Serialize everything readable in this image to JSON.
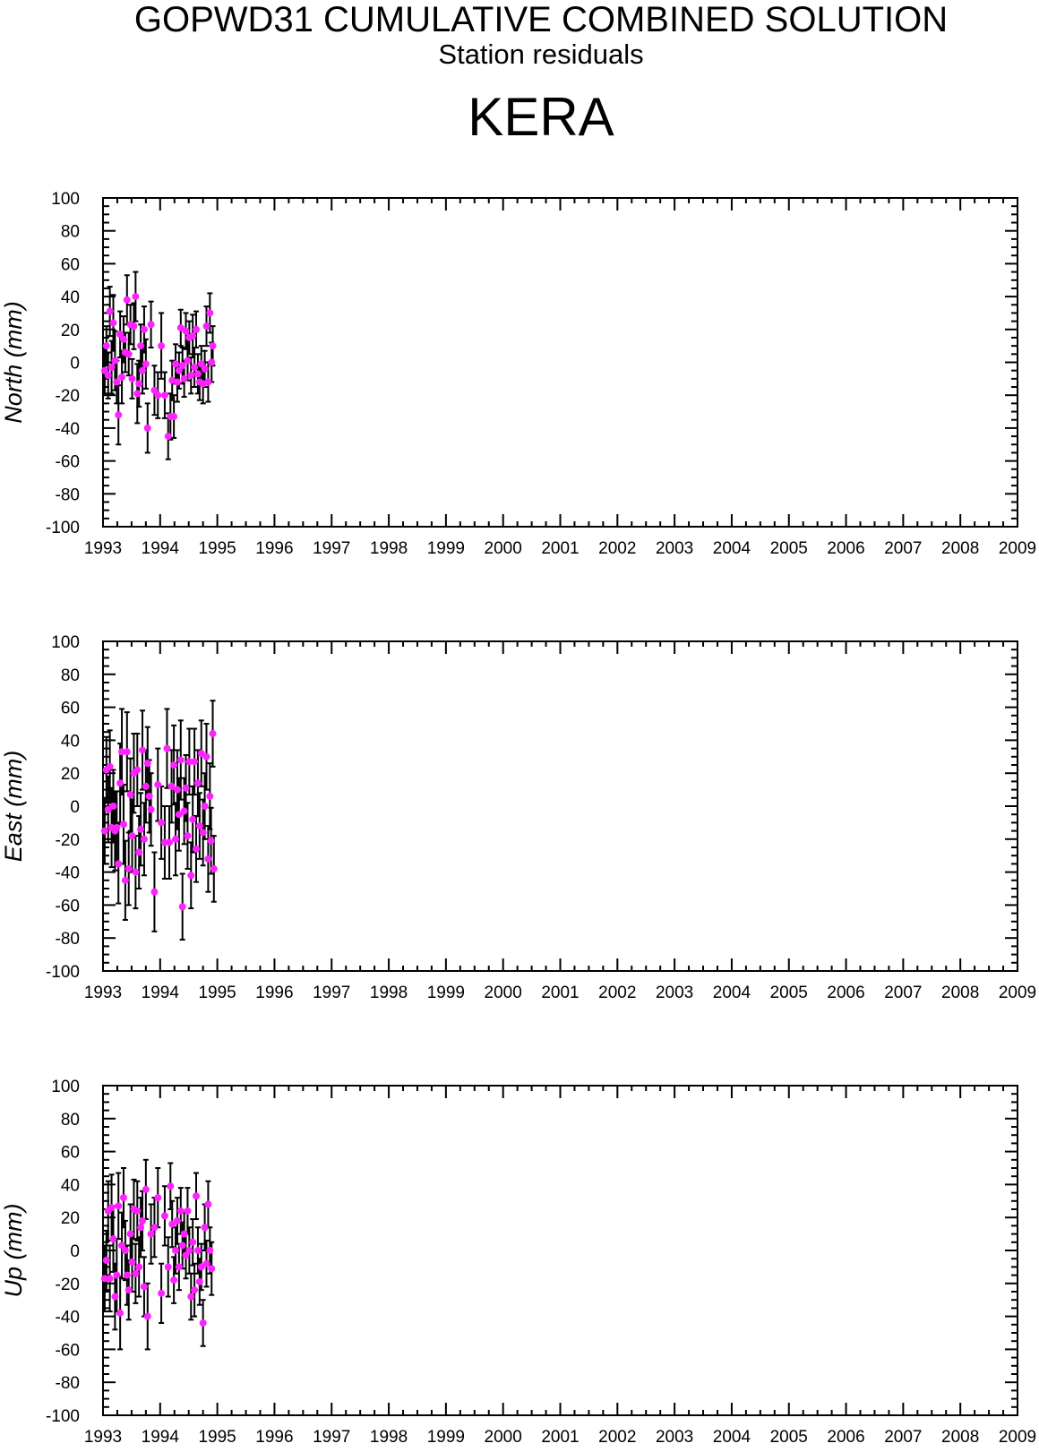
{
  "header": {
    "title": "GOPWD31 CUMULATIVE COMBINED SOLUTION",
    "subtitle": "Station residuals",
    "station": "KERA"
  },
  "style": {
    "marker_color": "#ff22ff",
    "error_bar_color": "#000000",
    "axis_color": "#000000"
  },
  "chart_data": [
    {
      "type": "scatter",
      "ylabel": "North (mm)",
      "xlim": [
        1993,
        2009
      ],
      "ylim": [
        -100,
        100
      ],
      "xticks": [
        "1993",
        "1994",
        "1995",
        "1996",
        "1997",
        "1998",
        "1999",
        "2000",
        "2001",
        "2002",
        "2003",
        "2004",
        "2005",
        "2006",
        "2007",
        "2008",
        "2009"
      ],
      "yticks": [
        "100",
        "80",
        "60",
        "40",
        "20",
        "0",
        "-20",
        "-40",
        "-60",
        "-80",
        "-100"
      ],
      "error_bars": true,
      "points": [
        [
          1993.03,
          -5,
          14
        ],
        [
          1993.06,
          10,
          12
        ],
        [
          1993.09,
          -8,
          14
        ],
        [
          1993.12,
          31,
          15
        ],
        [
          1993.15,
          -3,
          16
        ],
        [
          1993.18,
          24,
          17
        ],
        [
          1993.21,
          1,
          18
        ],
        [
          1993.24,
          -12,
          13
        ],
        [
          1993.27,
          -32,
          18
        ],
        [
          1993.3,
          17,
          14
        ],
        [
          1993.33,
          -9,
          16
        ],
        [
          1993.36,
          14,
          14
        ],
        [
          1993.39,
          6,
          12
        ],
        [
          1993.42,
          38,
          15
        ],
        [
          1993.45,
          5,
          13
        ],
        [
          1993.48,
          23,
          12
        ],
        [
          1993.51,
          -10,
          12
        ],
        [
          1993.54,
          22,
          14
        ],
        [
          1993.57,
          40,
          15
        ],
        [
          1993.6,
          -19,
          18
        ],
        [
          1993.63,
          -13,
          14
        ],
        [
          1993.66,
          10,
          13
        ],
        [
          1993.69,
          -5,
          14
        ],
        [
          1993.72,
          20,
          14
        ],
        [
          1993.75,
          -1,
          15
        ],
        [
          1993.78,
          -40,
          15
        ],
        [
          1993.84,
          23,
          14
        ],
        [
          1993.9,
          -17,
          15
        ],
        [
          1993.96,
          -20,
          14
        ],
        [
          1994.02,
          10,
          20
        ],
        [
          1994.08,
          -20,
          14
        ],
        [
          1994.14,
          -45,
          14
        ],
        [
          1994.18,
          -33,
          14
        ],
        [
          1994.21,
          -11,
          12
        ],
        [
          1994.24,
          -33,
          13
        ],
        [
          1994.27,
          -1,
          12
        ],
        [
          1994.3,
          -12,
          12
        ],
        [
          1994.33,
          -5,
          11
        ],
        [
          1994.36,
          21,
          11
        ],
        [
          1994.39,
          -2,
          11
        ],
        [
          1994.42,
          -10,
          11
        ],
        [
          1994.45,
          19,
          11
        ],
        [
          1994.48,
          1,
          12
        ],
        [
          1994.51,
          15,
          10
        ],
        [
          1994.54,
          -8,
          11
        ],
        [
          1994.57,
          16,
          13
        ],
        [
          1994.6,
          -3,
          12
        ],
        [
          1994.63,
          20,
          11
        ],
        [
          1994.66,
          -7,
          12
        ],
        [
          1994.69,
          -12,
          11
        ],
        [
          1994.72,
          -1,
          11
        ],
        [
          1994.75,
          -13,
          12
        ],
        [
          1994.78,
          -4,
          11
        ],
        [
          1994.81,
          22,
          12
        ],
        [
          1994.84,
          -12,
          12
        ],
        [
          1994.87,
          30,
          12
        ],
        [
          1994.9,
          0,
          12
        ],
        [
          1994.92,
          10,
          12
        ]
      ]
    },
    {
      "type": "scatter",
      "ylabel": "East (mm)",
      "xlim": [
        1993,
        2009
      ],
      "ylim": [
        -100,
        100
      ],
      "xticks": [
        "1993",
        "1994",
        "1995",
        "1996",
        "1997",
        "1998",
        "1999",
        "2000",
        "2001",
        "2002",
        "2003",
        "2004",
        "2005",
        "2006",
        "2007",
        "2008",
        "2009"
      ],
      "yticks": [
        "100",
        "80",
        "60",
        "40",
        "20",
        "0",
        "-20",
        "-40",
        "-60",
        "-80",
        "-100"
      ],
      "error_bars": true,
      "points": [
        [
          1993.03,
          -15,
          20
        ],
        [
          1993.06,
          22,
          20
        ],
        [
          1993.09,
          -2,
          20
        ],
        [
          1993.12,
          24,
          22
        ],
        [
          1993.15,
          -13,
          24
        ],
        [
          1993.18,
          0,
          22
        ],
        [
          1993.21,
          -15,
          24
        ],
        [
          1993.24,
          -13,
          22
        ],
        [
          1993.27,
          -35,
          24
        ],
        [
          1993.3,
          14,
          24
        ],
        [
          1993.33,
          33,
          26
        ],
        [
          1993.36,
          -11,
          24
        ],
        [
          1993.39,
          -45,
          24
        ],
        [
          1993.42,
          33,
          24
        ],
        [
          1993.45,
          -38,
          22
        ],
        [
          1993.48,
          7,
          22
        ],
        [
          1993.51,
          -18,
          22
        ],
        [
          1993.54,
          20,
          24
        ],
        [
          1993.57,
          -40,
          22
        ],
        [
          1993.6,
          22,
          22
        ],
        [
          1993.63,
          -28,
          22
        ],
        [
          1993.66,
          -14,
          22
        ],
        [
          1993.69,
          34,
          24
        ],
        [
          1993.72,
          -20,
          22
        ],
        [
          1993.75,
          12,
          22
        ],
        [
          1993.78,
          26,
          22
        ],
        [
          1993.81,
          6,
          22
        ],
        [
          1993.84,
          -2,
          22
        ],
        [
          1993.9,
          -52,
          24
        ],
        [
          1993.96,
          13,
          22
        ],
        [
          1994.02,
          -10,
          22
        ],
        [
          1994.08,
          -22,
          22
        ],
        [
          1994.12,
          35,
          24
        ],
        [
          1994.16,
          -22,
          22
        ],
        [
          1994.2,
          12,
          22
        ],
        [
          1994.24,
          25,
          24
        ],
        [
          1994.27,
          -20,
          22
        ],
        [
          1994.3,
          10,
          24
        ],
        [
          1994.33,
          -5,
          22
        ],
        [
          1994.36,
          28,
          24
        ],
        [
          1994.39,
          -61,
          20
        ],
        [
          1994.42,
          -3,
          20
        ],
        [
          1994.45,
          11,
          20
        ],
        [
          1994.48,
          -18,
          20
        ],
        [
          1994.51,
          27,
          20
        ],
        [
          1994.54,
          -42,
          20
        ],
        [
          1994.57,
          -8,
          20
        ],
        [
          1994.6,
          27,
          20
        ],
        [
          1994.63,
          -26,
          20
        ],
        [
          1994.66,
          14,
          20
        ],
        [
          1994.69,
          -12,
          20
        ],
        [
          1994.72,
          32,
          20
        ],
        [
          1994.75,
          -16,
          20
        ],
        [
          1994.78,
          0,
          20
        ],
        [
          1994.81,
          30,
          20
        ],
        [
          1994.84,
          -32,
          20
        ],
        [
          1994.87,
          6,
          20
        ],
        [
          1994.89,
          -21,
          20
        ],
        [
          1994.92,
          44,
          20
        ],
        [
          1994.94,
          -38,
          20
        ]
      ]
    },
    {
      "type": "scatter",
      "ylabel": "Up (mm)",
      "xlim": [
        1993,
        2009
      ],
      "ylim": [
        -100,
        100
      ],
      "xticks": [
        "1993",
        "1994",
        "1995",
        "1996",
        "1997",
        "1998",
        "1999",
        "2000",
        "2001",
        "2002",
        "2003",
        "2004",
        "2005",
        "2006",
        "2007",
        "2008",
        "2009"
      ],
      "yticks": [
        "100",
        "80",
        "60",
        "40",
        "20",
        "0",
        "-20",
        "-40",
        "-60",
        "-80",
        "-100"
      ],
      "error_bars": true,
      "points": [
        [
          1993.03,
          -17,
          20
        ],
        [
          1993.06,
          -6,
          18
        ],
        [
          1993.09,
          24,
          18
        ],
        [
          1993.12,
          -17,
          20
        ],
        [
          1993.15,
          26,
          20
        ],
        [
          1993.18,
          7,
          20
        ],
        [
          1993.21,
          -28,
          20
        ],
        [
          1993.24,
          -15,
          22
        ],
        [
          1993.27,
          27,
          20
        ],
        [
          1993.3,
          -38,
          22
        ],
        [
          1993.33,
          3,
          20
        ],
        [
          1993.36,
          32,
          18
        ],
        [
          1993.39,
          0,
          18
        ],
        [
          1993.42,
          -15,
          18
        ],
        [
          1993.45,
          -24,
          18
        ],
        [
          1993.48,
          10,
          18
        ],
        [
          1993.51,
          -7,
          18
        ],
        [
          1993.54,
          25,
          18
        ],
        [
          1993.57,
          -14,
          18
        ],
        [
          1993.6,
          24,
          18
        ],
        [
          1993.63,
          -10,
          18
        ],
        [
          1993.66,
          14,
          18
        ],
        [
          1993.69,
          18,
          18
        ],
        [
          1993.72,
          -22,
          18
        ],
        [
          1993.75,
          37,
          18
        ],
        [
          1993.78,
          -40,
          20
        ],
        [
          1993.84,
          10,
          18
        ],
        [
          1993.9,
          14,
          18
        ],
        [
          1993.96,
          32,
          18
        ],
        [
          1994.02,
          -26,
          18
        ],
        [
          1994.08,
          21,
          18
        ],
        [
          1994.14,
          -10,
          18
        ],
        [
          1994.18,
          39,
          14
        ],
        [
          1994.21,
          16,
          14
        ],
        [
          1994.24,
          -18,
          14
        ],
        [
          1994.27,
          0,
          14
        ],
        [
          1994.3,
          18,
          14
        ],
        [
          1994.33,
          -10,
          14
        ],
        [
          1994.36,
          24,
          14
        ],
        [
          1994.39,
          3,
          14
        ],
        [
          1994.42,
          10,
          14
        ],
        [
          1994.45,
          -3,
          14
        ],
        [
          1994.48,
          24,
          14
        ],
        [
          1994.51,
          0,
          14
        ],
        [
          1994.54,
          -28,
          14
        ],
        [
          1994.57,
          5,
          14
        ],
        [
          1994.6,
          -24,
          16
        ],
        [
          1994.63,
          33,
          14
        ],
        [
          1994.66,
          0,
          14
        ],
        [
          1994.69,
          -19,
          14
        ],
        [
          1994.72,
          -10,
          14
        ],
        [
          1994.75,
          -44,
          14
        ],
        [
          1994.78,
          14,
          14
        ],
        [
          1994.81,
          -8,
          14
        ],
        [
          1994.84,
          28,
          14
        ],
        [
          1994.87,
          0,
          14
        ],
        [
          1994.9,
          -11,
          16
        ]
      ]
    }
  ]
}
